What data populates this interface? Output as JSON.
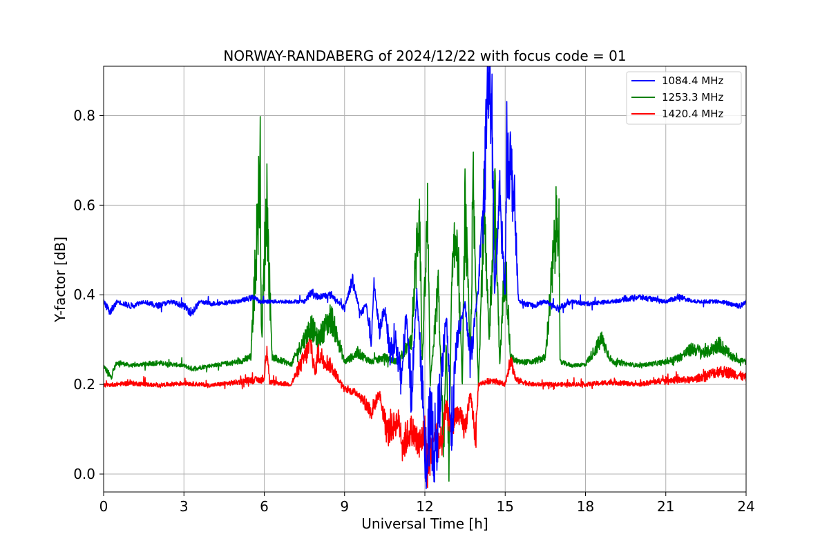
{
  "chart_data": {
    "type": "line",
    "title": "NORWAY-RANDABERG of 2024/12/22 with focus code = 01",
    "xlabel": "Universal Time [h]",
    "ylabel": "Y-factor [dB]",
    "xlim": [
      0,
      24
    ],
    "ylim": [
      -0.04,
      0.91
    ],
    "xticks": [
      0,
      3,
      6,
      9,
      12,
      15,
      18,
      21,
      24
    ],
    "yticks": [
      0.0,
      0.2,
      0.4,
      0.6,
      0.8
    ],
    "xtick_labels": [
      "0",
      "3",
      "6",
      "9",
      "12",
      "15",
      "18",
      "21",
      "24"
    ],
    "ytick_labels": [
      "0.0",
      "0.2",
      "0.4",
      "0.6",
      "0.8"
    ],
    "grid": true,
    "legend_position": "top-right",
    "series": [
      {
        "name": "1084.4 MHz",
        "color": "#0000ff",
        "baseline": 0.385,
        "points": [
          [
            0.0,
            0.385
          ],
          [
            0.25,
            0.36
          ],
          [
            0.5,
            0.385
          ],
          [
            1.0,
            0.375
          ],
          [
            1.5,
            0.385
          ],
          [
            2.0,
            0.375
          ],
          [
            2.5,
            0.385
          ],
          [
            3.0,
            0.375
          ],
          [
            3.3,
            0.36
          ],
          [
            3.6,
            0.385
          ],
          [
            4.0,
            0.38
          ],
          [
            5.0,
            0.385
          ],
          [
            5.65,
            0.395
          ],
          [
            5.8,
            0.385
          ],
          [
            7.5,
            0.385
          ],
          [
            7.75,
            0.405
          ],
          [
            8.0,
            0.395
          ],
          [
            8.5,
            0.4
          ],
          [
            9.0,
            0.37
          ],
          [
            9.3,
            0.435
          ],
          [
            9.6,
            0.355
          ],
          [
            9.8,
            0.38
          ],
          [
            10.0,
            0.3
          ],
          [
            10.1,
            0.425
          ],
          [
            10.3,
            0.32
          ],
          [
            10.5,
            0.37
          ],
          [
            10.7,
            0.27
          ],
          [
            10.9,
            0.3
          ],
          [
            11.1,
            0.2
          ],
          [
            11.3,
            0.35
          ],
          [
            11.5,
            0.18
          ],
          [
            11.7,
            0.405
          ],
          [
            11.9,
            0.2
          ],
          [
            12.0,
            0.08
          ],
          [
            12.05,
            0.0
          ],
          [
            12.2,
            0.12
          ],
          [
            12.4,
            0.05
          ],
          [
            12.6,
            0.2
          ],
          [
            12.8,
            0.35
          ],
          [
            13.0,
            0.1
          ],
          [
            13.2,
            0.3
          ],
          [
            13.5,
            0.38
          ],
          [
            13.7,
            0.25
          ],
          [
            13.9,
            0.36
          ],
          [
            14.0,
            0.42
          ],
          [
            14.2,
            0.6
          ],
          [
            14.35,
            0.87
          ],
          [
            14.5,
            0.82
          ],
          [
            14.6,
            0.4
          ],
          [
            14.8,
            0.62
          ],
          [
            15.0,
            0.4
          ],
          [
            15.05,
            0.73
          ],
          [
            15.2,
            0.69
          ],
          [
            15.35,
            0.6
          ],
          [
            15.5,
            0.385
          ],
          [
            16.0,
            0.375
          ],
          [
            16.5,
            0.385
          ],
          [
            17.0,
            0.37
          ],
          [
            17.5,
            0.385
          ],
          [
            18.0,
            0.38
          ],
          [
            19.0,
            0.385
          ],
          [
            20.0,
            0.395
          ],
          [
            21.0,
            0.385
          ],
          [
            21.5,
            0.395
          ],
          [
            21.8,
            0.39
          ],
          [
            22.0,
            0.385
          ],
          [
            23.0,
            0.385
          ],
          [
            23.8,
            0.375
          ],
          [
            24.0,
            0.385
          ]
        ]
      },
      {
        "name": "1253.3 MHz",
        "color": "#008000",
        "baseline": 0.242,
        "points": [
          [
            0.0,
            0.242
          ],
          [
            0.25,
            0.215
          ],
          [
            0.5,
            0.25
          ],
          [
            1.0,
            0.242
          ],
          [
            2.0,
            0.248
          ],
          [
            3.0,
            0.242
          ],
          [
            3.3,
            0.235
          ],
          [
            4.0,
            0.242
          ],
          [
            5.0,
            0.25
          ],
          [
            5.5,
            0.26
          ],
          [
            5.85,
            0.685
          ],
          [
            5.9,
            0.3
          ],
          [
            6.1,
            0.625
          ],
          [
            6.15,
            0.5
          ],
          [
            6.3,
            0.26
          ],
          [
            7.0,
            0.245
          ],
          [
            7.75,
            0.33
          ],
          [
            8.0,
            0.3
          ],
          [
            8.5,
            0.35
          ],
          [
            9.0,
            0.25
          ],
          [
            9.5,
            0.27
          ],
          [
            10.0,
            0.25
          ],
          [
            10.5,
            0.26
          ],
          [
            11.0,
            0.25
          ],
          [
            11.5,
            0.3
          ],
          [
            11.8,
            0.61
          ],
          [
            11.9,
            0.25
          ],
          [
            12.1,
            0.57
          ],
          [
            12.2,
            0.2
          ],
          [
            12.5,
            0.42
          ],
          [
            12.7,
            0.05
          ],
          [
            12.8,
            0.3
          ],
          [
            12.9,
            0.0
          ],
          [
            13.0,
            0.42
          ],
          [
            13.2,
            0.55
          ],
          [
            13.4,
            0.2
          ],
          [
            13.5,
            0.6
          ],
          [
            13.7,
            0.25
          ],
          [
            13.8,
            0.64
          ],
          [
            14.0,
            0.2
          ],
          [
            14.2,
            0.58
          ],
          [
            14.4,
            0.3
          ],
          [
            14.6,
            0.63
          ],
          [
            14.8,
            0.25
          ],
          [
            15.0,
            0.48
          ],
          [
            15.2,
            0.26
          ],
          [
            15.5,
            0.25
          ],
          [
            16.0,
            0.25
          ],
          [
            16.5,
            0.26
          ],
          [
            17.0,
            0.618
          ],
          [
            17.05,
            0.25
          ],
          [
            17.5,
            0.242
          ],
          [
            18.0,
            0.245
          ],
          [
            18.6,
            0.3
          ],
          [
            19.0,
            0.25
          ],
          [
            20.0,
            0.242
          ],
          [
            21.0,
            0.25
          ],
          [
            21.5,
            0.26
          ],
          [
            22.0,
            0.28
          ],
          [
            22.5,
            0.27
          ],
          [
            23.0,
            0.29
          ],
          [
            23.5,
            0.26
          ],
          [
            24.0,
            0.25
          ]
        ]
      },
      {
        "name": "1420.4 MHz",
        "color": "#ff0000",
        "baseline": 0.198,
        "points": [
          [
            0.0,
            0.198
          ],
          [
            1.0,
            0.203
          ],
          [
            2.0,
            0.198
          ],
          [
            3.0,
            0.203
          ],
          [
            4.0,
            0.198
          ],
          [
            5.0,
            0.205
          ],
          [
            5.5,
            0.21
          ],
          [
            6.0,
            0.21
          ],
          [
            6.1,
            0.29
          ],
          [
            6.2,
            0.205
          ],
          [
            7.0,
            0.2
          ],
          [
            7.75,
            0.29
          ],
          [
            7.9,
            0.22
          ],
          [
            8.0,
            0.27
          ],
          [
            8.5,
            0.24
          ],
          [
            9.0,
            0.19
          ],
          [
            9.5,
            0.18
          ],
          [
            10.0,
            0.14
          ],
          [
            10.3,
            0.18
          ],
          [
            10.6,
            0.09
          ],
          [
            11.0,
            0.12
          ],
          [
            11.2,
            0.07
          ],
          [
            11.5,
            0.1
          ],
          [
            11.8,
            0.06
          ],
          [
            12.0,
            0.1
          ],
          [
            12.1,
            0.02
          ],
          [
            12.4,
            0.1
          ],
          [
            12.6,
            0.06
          ],
          [
            12.8,
            0.15
          ],
          [
            13.0,
            0.1
          ],
          [
            13.2,
            0.14
          ],
          [
            13.5,
            0.1
          ],
          [
            13.7,
            0.18
          ],
          [
            13.9,
            0.08
          ],
          [
            14.0,
            0.2
          ],
          [
            14.5,
            0.21
          ],
          [
            15.0,
            0.2
          ],
          [
            15.2,
            0.26
          ],
          [
            15.4,
            0.21
          ],
          [
            16.0,
            0.2
          ],
          [
            17.0,
            0.2
          ],
          [
            18.0,
            0.2
          ],
          [
            19.0,
            0.205
          ],
          [
            20.0,
            0.2
          ],
          [
            21.0,
            0.21
          ],
          [
            22.0,
            0.21
          ],
          [
            22.5,
            0.22
          ],
          [
            23.0,
            0.23
          ],
          [
            23.5,
            0.225
          ],
          [
            24.0,
            0.215
          ]
        ]
      }
    ]
  }
}
